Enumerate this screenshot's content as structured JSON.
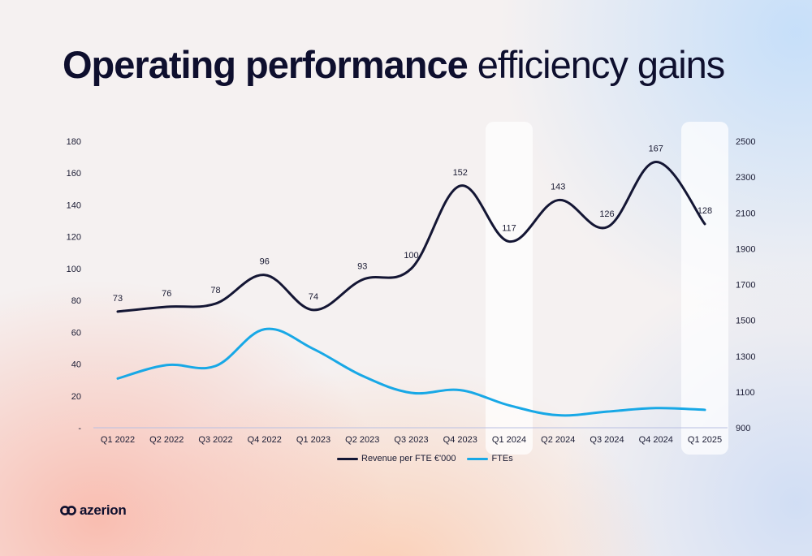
{
  "title": {
    "bold": "Operating performance",
    "light": "efficiency gains"
  },
  "brand": "azerion",
  "colors": {
    "revenue": "#141634",
    "ftes": "#18a8e6",
    "highlight": "#ffffff"
  },
  "chart_data": {
    "type": "line",
    "categories": [
      "Q1 2022",
      "Q2 2022",
      "Q3 2022",
      "Q4 2022",
      "Q1 2023",
      "Q2 2023",
      "Q3 2023",
      "Q4 2023",
      "Q1 2024",
      "Q2 2024",
      "Q3 2024",
      "Q4 2024",
      "Q1 2025"
    ],
    "series": [
      {
        "name": "Revenue per FTE €'000",
        "axis": "left",
        "values": [
          73,
          76,
          78,
          96,
          74,
          93,
          100,
          152,
          117,
          143,
          126,
          167,
          128
        ],
        "data_labels": [
          "73",
          "76",
          "78",
          "96",
          "74",
          "93",
          "100",
          "152",
          "117",
          "143",
          "126",
          "167",
          "128"
        ]
      },
      {
        "name": "FTEs",
        "axis": "right",
        "values": [
          1175,
          1250,
          1245,
          1450,
          1340,
          1190,
          1095,
          1110,
          1025,
          970,
          990,
          1010,
          1000
        ]
      }
    ],
    "y_left": {
      "min": 0,
      "max": 180,
      "ticks": [
        "-",
        "20",
        "40",
        "60",
        "80",
        "100",
        "120",
        "140",
        "160",
        "180"
      ]
    },
    "y_right": {
      "min": 900,
      "max": 2500,
      "ticks": [
        "900",
        "1100",
        "1300",
        "1500",
        "1700",
        "1900",
        "2100",
        "2300",
        "2500"
      ]
    },
    "highlighted_categories": [
      "Q1 2024",
      "Q1 2025"
    ],
    "grid": false,
    "legend_placement": "bottom"
  }
}
